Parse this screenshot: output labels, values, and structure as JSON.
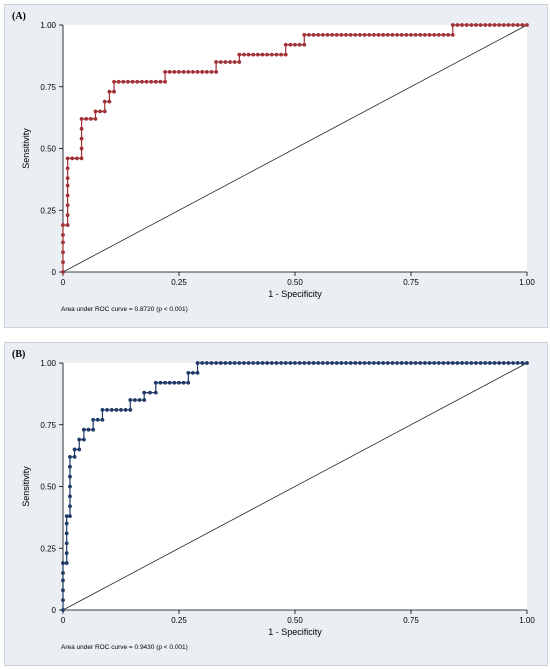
{
  "chart_data": [
    {
      "type": "line",
      "panel_label": "(A)",
      "xlabel": "1 - Specificity",
      "ylabel": "Sensitivity",
      "xlim": [
        0,
        1
      ],
      "ylim": [
        0,
        1
      ],
      "x_ticks": [
        "0",
        "0.25",
        "0.50",
        "0.75",
        "1.00"
      ],
      "y_ticks": [
        "0",
        "0.25",
        "0.50",
        "0.75",
        "1.00"
      ],
      "annotation": "Area under ROC curve = 0.8720 (p < 0.001)",
      "grid": false,
      "series": [
        {
          "color": "#a13237",
          "steps": [
            [
              0.0,
              0.0
            ],
            [
              0.0,
              0.04
            ],
            [
              0.0,
              0.08
            ],
            [
              0.0,
              0.12
            ],
            [
              0.0,
              0.15
            ],
            [
              0.0,
              0.19
            ],
            [
              0.01,
              0.19
            ],
            [
              0.01,
              0.23
            ],
            [
              0.01,
              0.27
            ],
            [
              0.01,
              0.31
            ],
            [
              0.01,
              0.35
            ],
            [
              0.01,
              0.38
            ],
            [
              0.01,
              0.42
            ],
            [
              0.01,
              0.46
            ],
            [
              0.02,
              0.46
            ],
            [
              0.03,
              0.46
            ],
            [
              0.04,
              0.46
            ],
            [
              0.04,
              0.5
            ],
            [
              0.04,
              0.54
            ],
            [
              0.04,
              0.58
            ],
            [
              0.04,
              0.62
            ],
            [
              0.05,
              0.62
            ],
            [
              0.06,
              0.62
            ],
            [
              0.07,
              0.62
            ],
            [
              0.07,
              0.65
            ],
            [
              0.08,
              0.65
            ],
            [
              0.09,
              0.65
            ],
            [
              0.09,
              0.69
            ],
            [
              0.1,
              0.69
            ],
            [
              0.1,
              0.73
            ],
            [
              0.11,
              0.73
            ],
            [
              0.11,
              0.77
            ],
            [
              0.22,
              0.77
            ],
            [
              0.22,
              0.81
            ],
            [
              0.33,
              0.81
            ],
            [
              0.33,
              0.85
            ],
            [
              0.38,
              0.85
            ],
            [
              0.38,
              0.88
            ],
            [
              0.48,
              0.88
            ],
            [
              0.48,
              0.92
            ],
            [
              0.52,
              0.92
            ],
            [
              0.52,
              0.96
            ],
            [
              0.84,
              0.96
            ],
            [
              0.84,
              1.0
            ],
            [
              1.0,
              1.0
            ]
          ]
        }
      ]
    },
    {
      "type": "line",
      "panel_label": "(B)",
      "xlabel": "1 - Specificity",
      "ylabel": "Sensitivity",
      "xlim": [
        0,
        1
      ],
      "ylim": [
        0,
        1
      ],
      "x_ticks": [
        "0",
        "0.25",
        "0.50",
        "0.75",
        "1.00"
      ],
      "y_ticks": [
        "0",
        "0.25",
        "0.50",
        "0.75",
        "1.00"
      ],
      "annotation": "Area under ROC curve = 0.9430 (p < 0.001)",
      "grid": false,
      "series": [
        {
          "color": "#1f3a66",
          "steps": [
            [
              0.0,
              0.0
            ],
            [
              0.0,
              0.04
            ],
            [
              0.0,
              0.08
            ],
            [
              0.0,
              0.12
            ],
            [
              0.0,
              0.15
            ],
            [
              0.0,
              0.19
            ],
            [
              0.008,
              0.19
            ],
            [
              0.008,
              0.23
            ],
            [
              0.008,
              0.27
            ],
            [
              0.008,
              0.31
            ],
            [
              0.008,
              0.35
            ],
            [
              0.008,
              0.38
            ],
            [
              0.015,
              0.38
            ],
            [
              0.015,
              0.42
            ],
            [
              0.015,
              0.46
            ],
            [
              0.015,
              0.5
            ],
            [
              0.015,
              0.54
            ],
            [
              0.015,
              0.58
            ],
            [
              0.015,
              0.62
            ],
            [
              0.025,
              0.62
            ],
            [
              0.025,
              0.65
            ],
            [
              0.035,
              0.65
            ],
            [
              0.035,
              0.69
            ],
            [
              0.045,
              0.69
            ],
            [
              0.045,
              0.73
            ],
            [
              0.065,
              0.73
            ],
            [
              0.065,
              0.77
            ],
            [
              0.085,
              0.77
            ],
            [
              0.085,
              0.81
            ],
            [
              0.145,
              0.81
            ],
            [
              0.145,
              0.85
            ],
            [
              0.175,
              0.85
            ],
            [
              0.175,
              0.88
            ],
            [
              0.2,
              0.88
            ],
            [
              0.2,
              0.92
            ],
            [
              0.27,
              0.92
            ],
            [
              0.27,
              0.96
            ],
            [
              0.29,
              0.96
            ],
            [
              0.29,
              1.0
            ],
            [
              1.0,
              1.0
            ]
          ]
        }
      ]
    }
  ]
}
